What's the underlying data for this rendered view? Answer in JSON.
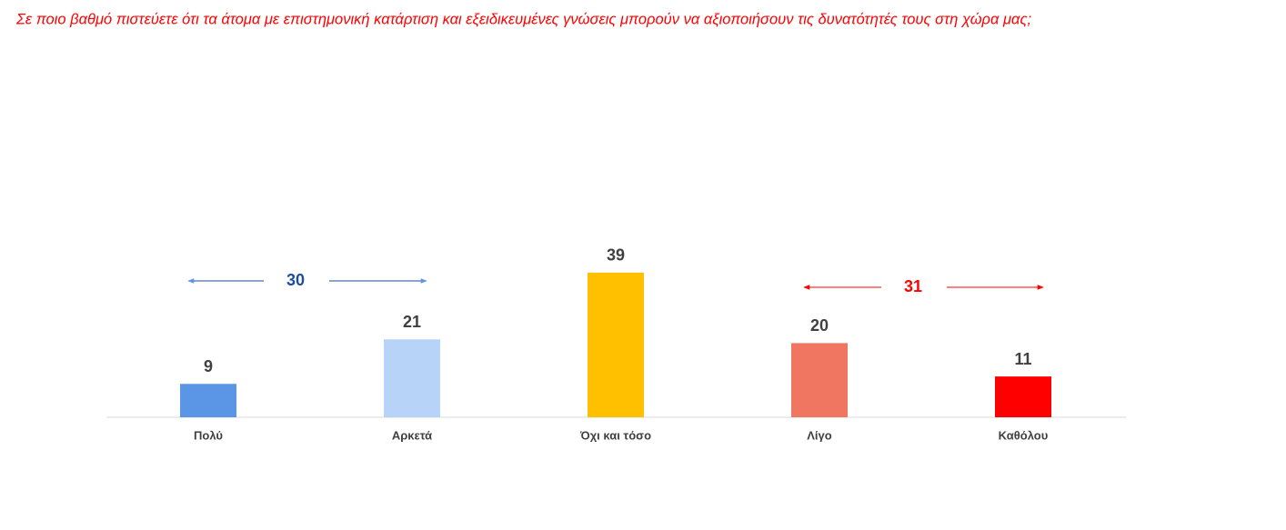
{
  "chart_data": {
    "type": "bar",
    "title": "Σε ποιο βαθμό πιστεύετε ότι τα άτομα με επιστημονική κατάρτιση και εξειδικευμένες γνώσεις μπορούν να αξιοποιήσουν τις δυνατότητές τους στη χώρα μας;",
    "categories": [
      "Πολύ",
      "Αρκετά",
      "Όχι και τόσο",
      "Λίγο",
      "Καθόλου"
    ],
    "values": [
      9,
      21,
      39,
      20,
      11
    ],
    "colors": [
      "#5b96e6",
      "#b8d3f8",
      "#ffc000",
      "#f07662",
      "#ff0000"
    ],
    "annotations": [
      {
        "value": 30,
        "color": "#1f4e99"
      },
      {
        "value": 31,
        "color": "#ff0000"
      }
    ]
  }
}
